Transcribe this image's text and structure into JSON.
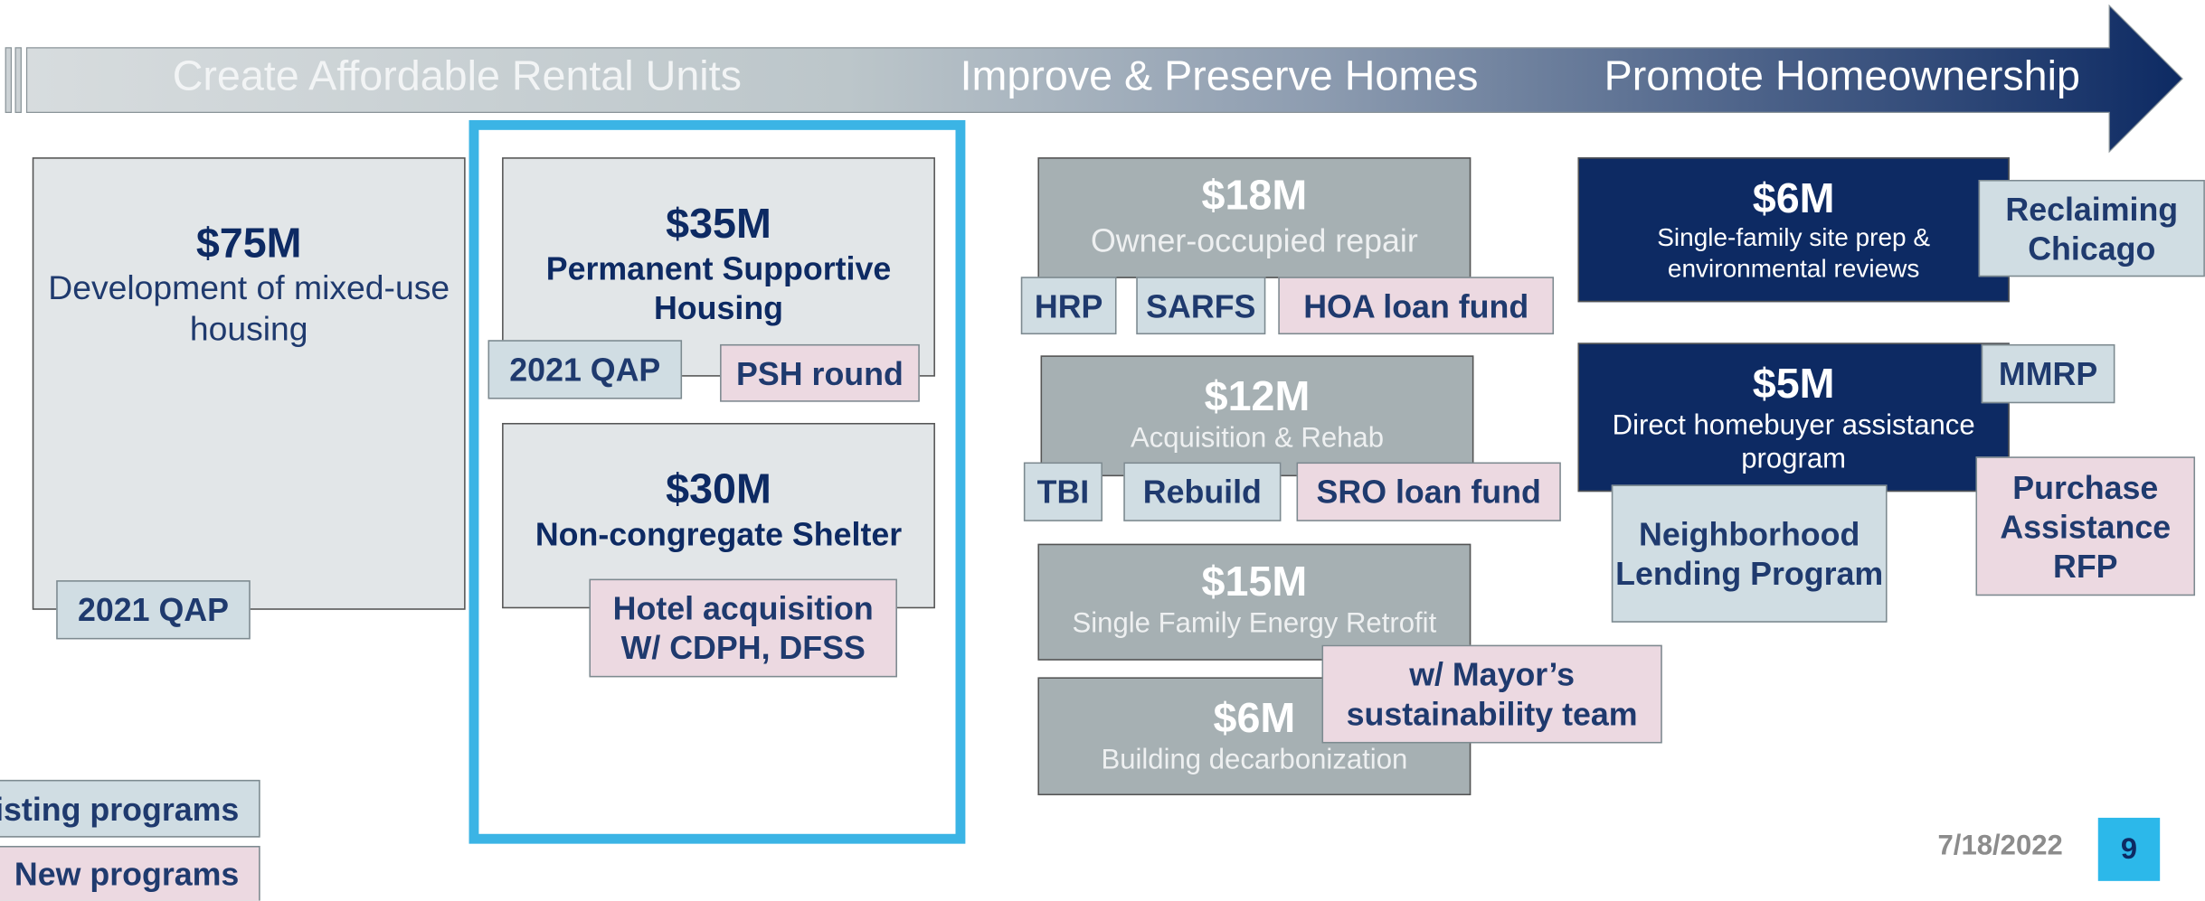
{
  "arrow": {
    "sections": [
      "Create Affordable Rental Units",
      "Improve & Preserve Homes",
      "Promote Homeownership"
    ]
  },
  "boxes": [
    {
      "amount": "$75M",
      "description": "Development of mixed-use housing",
      "color": "#e2e6e8",
      "tags": [
        {
          "text": "2021 QAP",
          "color": "#d0dde3"
        }
      ]
    },
    {
      "amount": "$35M",
      "description": "Permanent Supportive Housing",
      "color": "#e2e6e8",
      "tags": [
        {
          "text": "2021 QAP",
          "color": "#d0dde3"
        },
        {
          "text": "PSH round",
          "color": "#ecd9e1"
        }
      ]
    },
    {
      "amount": "$30M",
      "description": "Non-congregate Shelter",
      "color": "#e2e6e8",
      "tags": [
        {
          "text": "Hotel acquisition W/ CDPH, DFSS",
          "color": "#ecd9e1"
        }
      ]
    },
    {
      "amount": "$18M",
      "description": "Owner-occupied repair",
      "color": "#a6b0b3",
      "tags": [
        {
          "text": "HRP",
          "color": "#d0dde3"
        },
        {
          "text": "SARFS",
          "color": "#d0dde3"
        },
        {
          "text": "HOA loan fund",
          "color": "#ecd9e1"
        }
      ]
    },
    {
      "amount": "$12M",
      "description": "Acquisition & Rehab",
      "color": "#a6b0b3",
      "tags": [
        {
          "text": "TBI",
          "color": "#d0dde3"
        },
        {
          "text": "Rebuild",
          "color": "#d0dde3"
        },
        {
          "text": "SRO loan fund",
          "color": "#ecd9e1"
        }
      ]
    },
    {
      "amount": "$15M",
      "description": "Single Family Energy Retrofit",
      "color": "#a6b0b3",
      "tags": []
    },
    {
      "amount": "$6M",
      "description": "Building decarbonization",
      "color": "#a6b0b3",
      "tags": [
        {
          "text": "w/ Mayor’s sustainability team",
          "color": "#ecd9e1"
        }
      ]
    },
    {
      "amount": "$6M",
      "description": "Single-family site prep & environmental reviews",
      "color": "#0d2a63",
      "tags": [
        {
          "text": "Reclaiming Chicago",
          "color": "#d0dde3"
        }
      ]
    },
    {
      "amount": "$5M",
      "description": "Direct homebuyer assistance program",
      "color": "#0d2a63",
      "tags": [
        {
          "text": "MMRP",
          "color": "#d0dde3"
        },
        {
          "text": "Neighborhood Lending Program",
          "color": "#d0dde3"
        },
        {
          "text": "Purchase Assistance RFP",
          "color": "#ecd9e1"
        }
      ]
    }
  ],
  "legend": [
    {
      "text": "Existing programs",
      "color": "#d0dde3"
    },
    {
      "text": "New programs",
      "color": "#ecd9e1"
    }
  ],
  "footer": {
    "date": "7/18/2022",
    "page": "9"
  }
}
